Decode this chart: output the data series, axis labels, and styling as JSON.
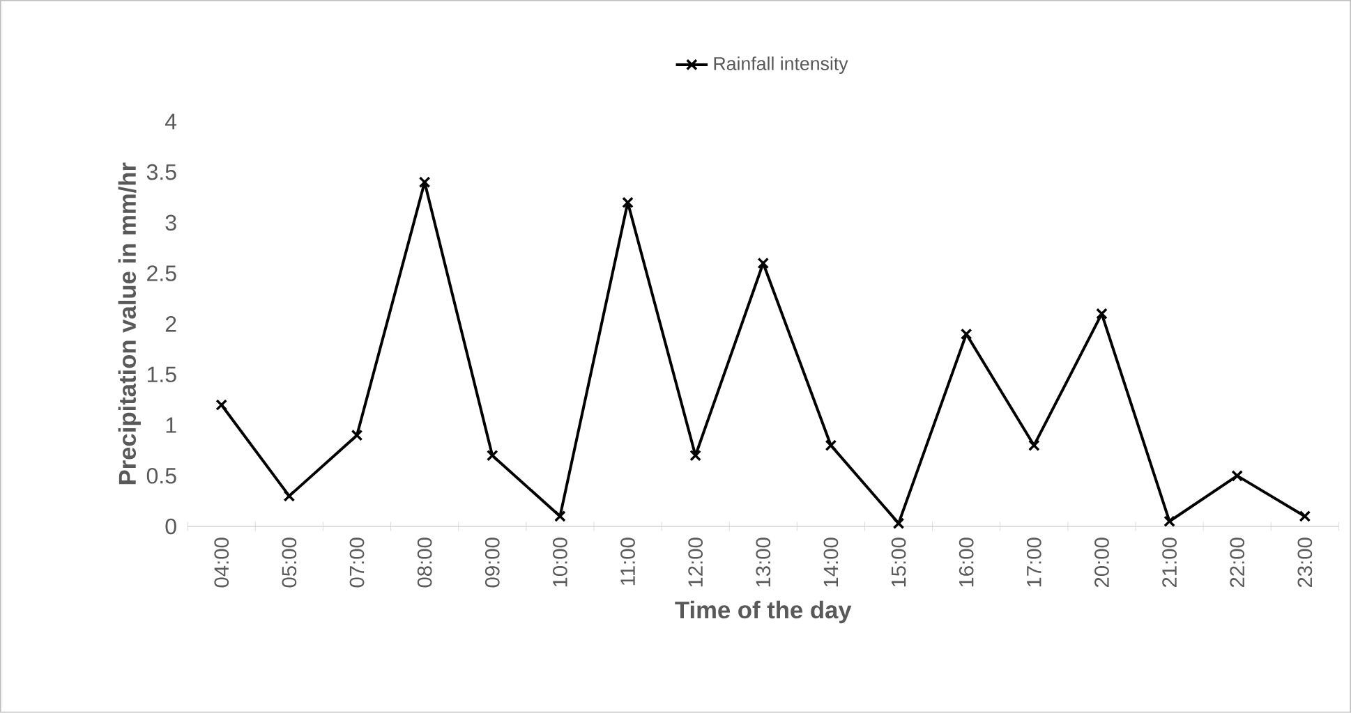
{
  "chart_data": {
    "type": "line",
    "xlabel": "Time of the day",
    "ylabel": "Precipitation value in mm/hr",
    "categories": [
      "04:00",
      "05:00",
      "07:00",
      "08:00",
      "09:00",
      "10:00",
      "11:00",
      "12:00",
      "13:00",
      "14:00",
      "15:00",
      "16:00",
      "17:00",
      "20:00",
      "21:00",
      "22:00",
      "23:00"
    ],
    "series": [
      {
        "name": "Rainfall intensity",
        "color": "#000000",
        "values": [
          1.2,
          0.3,
          0.9,
          3.4,
          0.7,
          0.1,
          3.2,
          0.7,
          2.6,
          0.8,
          0.03,
          1.9,
          0.8,
          2.1,
          0.05,
          0.5,
          0.1
        ]
      }
    ],
    "ylim": [
      0,
      4
    ],
    "yticks": [
      0,
      0.5,
      1,
      1.5,
      2,
      2.5,
      3,
      3.5,
      4
    ],
    "grid": false,
    "legend": "top",
    "marker": "cross",
    "line_style": "solid"
  }
}
